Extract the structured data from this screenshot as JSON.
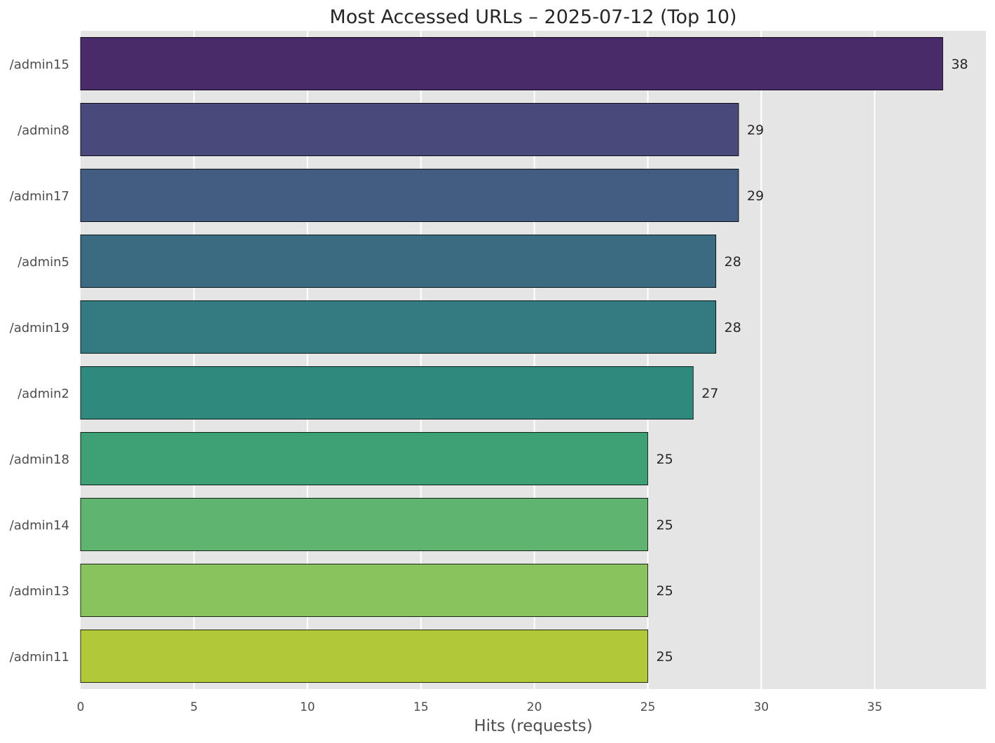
{
  "chart_data": {
    "type": "bar",
    "orientation": "horizontal",
    "title": "Most Accessed URLs – 2025-07-12 (Top 10)",
    "xlabel": "Hits (requests)",
    "ylabel": "",
    "categories": [
      "/admin15",
      "/admin8",
      "/admin17",
      "/admin5",
      "/admin19",
      "/admin2",
      "/admin18",
      "/admin14",
      "/admin13",
      "/admin11"
    ],
    "values": [
      38,
      29,
      29,
      28,
      28,
      27,
      25,
      25,
      25,
      25
    ],
    "value_labels": [
      "38",
      "29",
      "29",
      "28",
      "28",
      "27",
      "25",
      "25",
      "25",
      "25"
    ],
    "xlim": [
      0,
      39.9
    ],
    "xticks": [
      0,
      5,
      10,
      15,
      20,
      25,
      30,
      35
    ],
    "xtick_labels": [
      "0",
      "5",
      "10",
      "15",
      "20",
      "25",
      "30",
      "35"
    ],
    "grid": true,
    "bar_colors": [
      "#482b68",
      "#4a497c",
      "#435d82",
      "#3a6b80",
      "#337b80",
      "#2f8a7d",
      "#3ea176",
      "#5fb46f",
      "#88c35d",
      "#b1c838"
    ],
    "background_color": "#e5e5e5",
    "grid_color": "#ffffff"
  }
}
